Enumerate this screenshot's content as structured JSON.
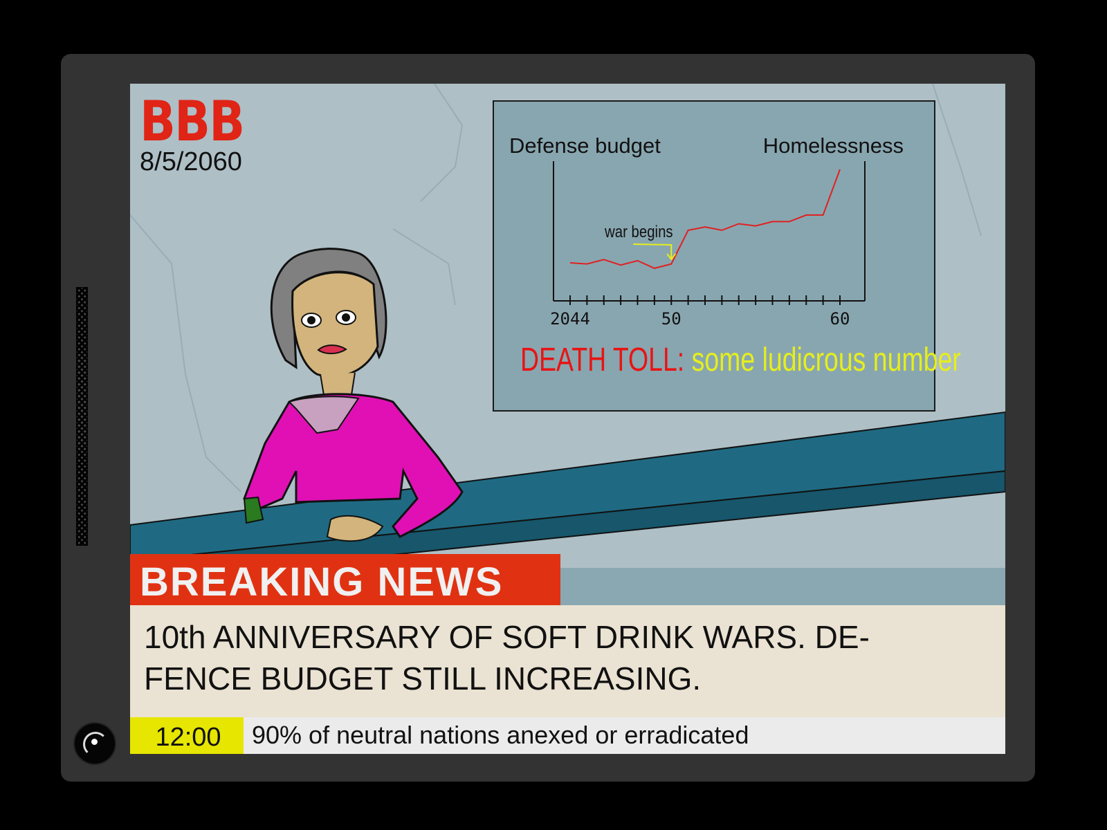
{
  "channel": {
    "logo": "BBB",
    "date": "8/5/2060"
  },
  "board": {
    "label_left": "Defense budget",
    "label_right": "Homelessness",
    "annotation": "war begins",
    "death_toll_label": "DEATH TOLL:",
    "death_toll_value": "some ludicrous number",
    "line_color": "#e02020",
    "annotation_color": "#e6ee1c"
  },
  "chart_data": {
    "type": "line",
    "x": [
      2044,
      2045,
      2046,
      2047,
      2048,
      2049,
      2050,
      2051,
      2052,
      2053,
      2054,
      2055,
      2056,
      2057,
      2058,
      2059,
      2060
    ],
    "tick_labels": [
      "2044",
      "50",
      "60"
    ],
    "xlabel": "",
    "annotations": [
      {
        "x": 2050,
        "text": "war begins"
      }
    ],
    "relative_values": [
      0.14,
      0.13,
      0.17,
      0.12,
      0.16,
      0.09,
      0.13,
      0.44,
      0.47,
      0.44,
      0.5,
      0.48,
      0.52,
      0.52,
      0.58,
      0.58,
      1.0
    ]
  },
  "lower_third": {
    "banner": "BREAKING NEWS",
    "headline_line1": "10th ANNIVERSARY OF SOFT DRINK WARS. DE-",
    "headline_line2": "FENCE BUDGET STILL INCREASING.",
    "time": "12:00",
    "ticker": "90% of neutral nations anexed or erradicated"
  }
}
